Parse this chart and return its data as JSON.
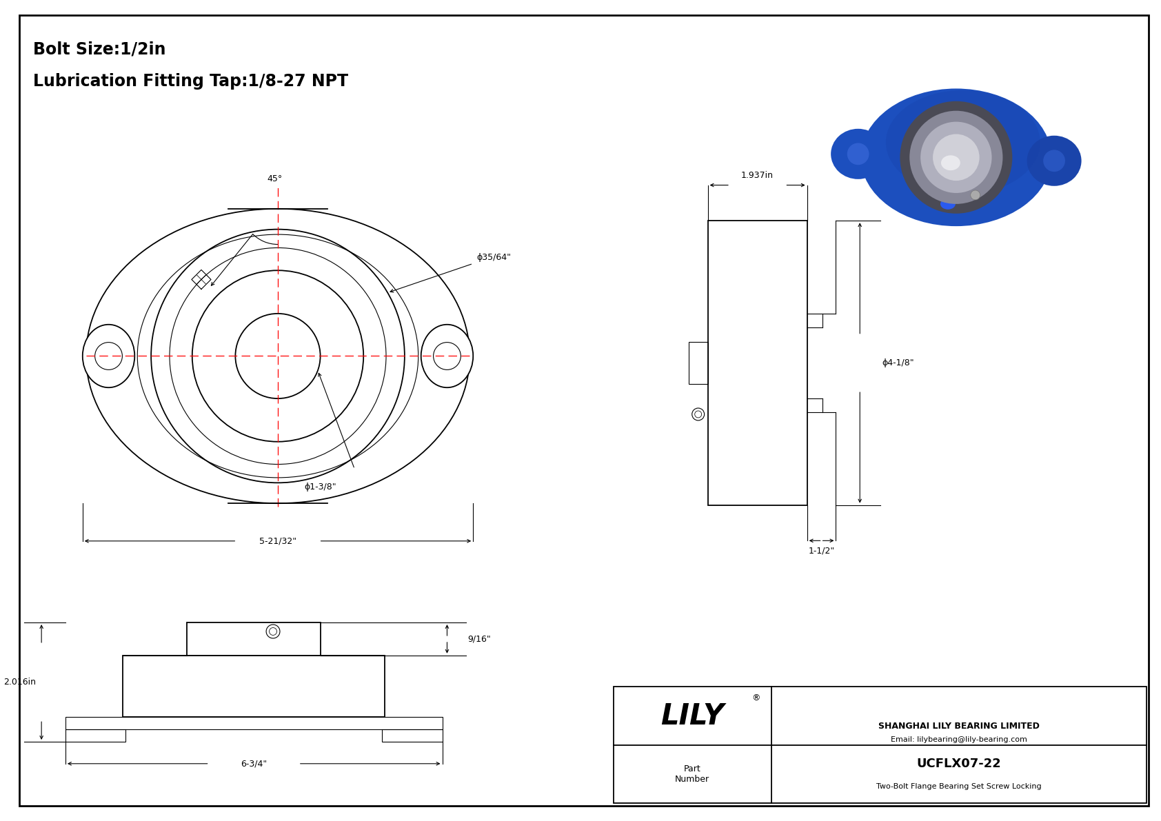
{
  "title_line1": "Bolt Size:1/2in",
  "title_line2": "Lubrication Fitting Tap:1/8-27 NPT",
  "bg_color": "#ffffff",
  "border_color": "#000000",
  "line_color": "#000000",
  "red_color": "#ff0000",
  "drawing_lw": 1.3,
  "thin_lw": 0.8,
  "dim_lw": 0.8,
  "company": "SHANGHAI LILY BEARING LIMITED",
  "email": "Email: lilybearing@lily-bearing.com",
  "part_number": "UCFLX07-22",
  "part_desc": "Two-Bolt Flange Bearing Set Screw Locking",
  "brand_reg": "®",
  "dim_35_64": "ϕ35/64\"",
  "dim_1_38": "ϕ1-3/8\"",
  "dim_5_2132": "5-21/32\"",
  "dim_1937": "1.937in",
  "dim_4_18": "ϕ4-1/8\"",
  "dim_1_12": "1-1/2\"",
  "dim_2016": "2.016in",
  "dim_9_16": "9/16\"",
  "dim_6_34": "6-3/4\""
}
